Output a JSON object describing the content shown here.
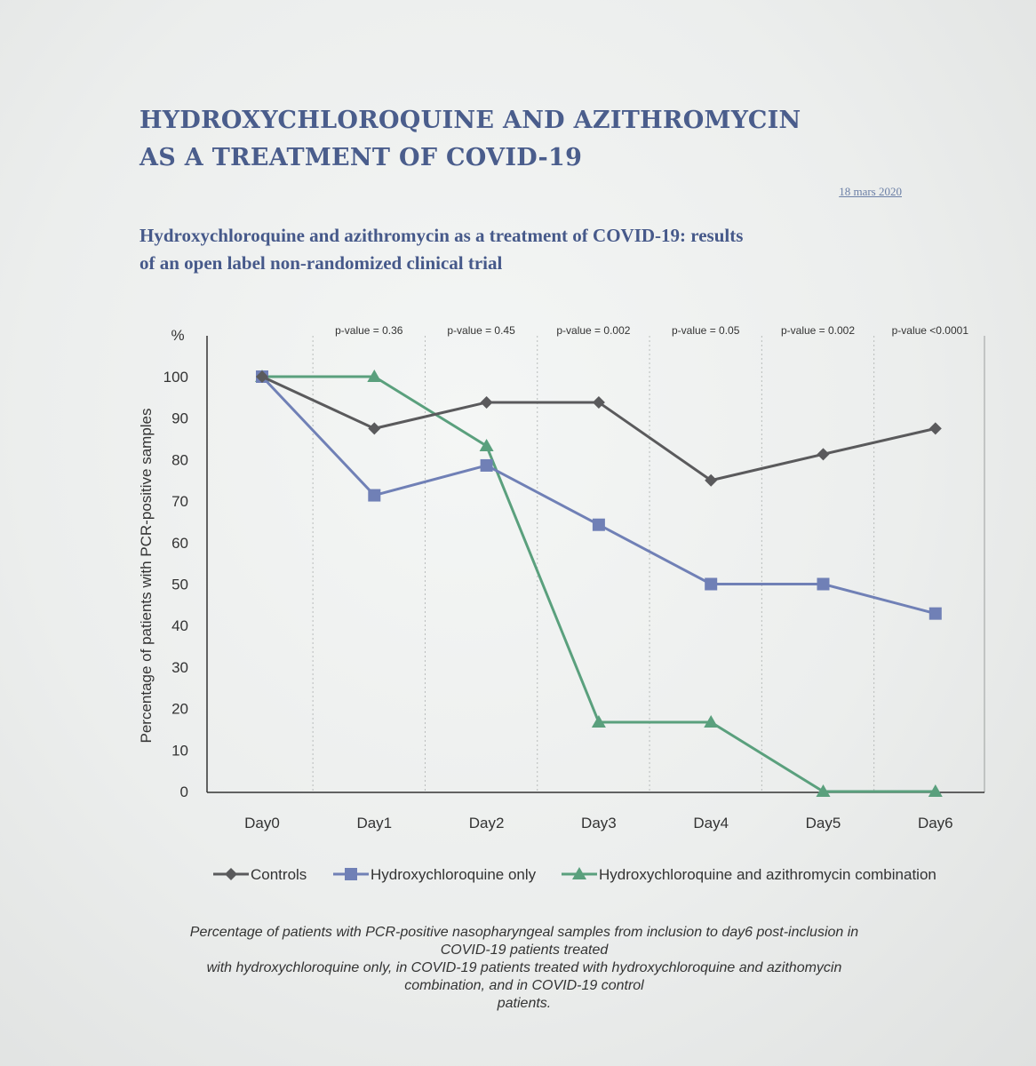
{
  "document": {
    "title_lines": [
      "HYDROXYCHLOROQUINE AND AZITHROMYCIN",
      "AS A TREATMENT OF COVID-19"
    ],
    "date": "18 mars 2020",
    "subtitle_lines": [
      "Hydroxychloroquine and azithromycin as a treatment of COVID-19: results",
      "of an open label non-randomized clinical trial"
    ],
    "caption_lines": [
      "Percentage of patients with PCR-positive nasopharyngeal samples from inclusion to day6 post-inclusion in",
      "COVID-19 patients treated",
      "with hydroxychloroquine only, in COVID-19 patients treated with hydroxychloroquine and azithomycin",
      "combination, and in COVID-19 control",
      "patients."
    ]
  },
  "chart_data": {
    "type": "line",
    "title": "",
    "xlabel": "",
    "ylabel": "Percentage of patients with PCR-positive samples",
    "y_unit": "%",
    "ylim": [
      0,
      100
    ],
    "y_ticks": [
      0,
      10,
      20,
      30,
      40,
      50,
      60,
      70,
      80,
      90,
      100
    ],
    "categories": [
      "Day0",
      "Day1",
      "Day2",
      "Day3",
      "Day4",
      "Day5",
      "Day6"
    ],
    "annotations": [
      "p-value = 0.36",
      "p-value = 0.45",
      "p-value = 0.002",
      "p-value = 0.05",
      "p-value = 0.002",
      "p-value <0.0001"
    ],
    "grid": "vertical dotted",
    "legend_position": "bottom",
    "series": [
      {
        "name": "Controls",
        "marker": "diamond",
        "color": "#5a5a5c",
        "values": [
          100,
          87.5,
          93.8,
          93.8,
          75,
          81.3,
          87.5
        ]
      },
      {
        "name": "Hydroxychloroquine only",
        "marker": "square",
        "color": "#7080b6",
        "values": [
          100,
          71.4,
          78.6,
          64.3,
          50,
          50,
          42.9
        ]
      },
      {
        "name": "Hydroxychloroquine and azithromycin combination",
        "marker": "triangle",
        "color": "#5aa07d",
        "values": [
          100,
          100,
          83.3,
          16.7,
          16.7,
          0,
          0
        ]
      }
    ]
  }
}
